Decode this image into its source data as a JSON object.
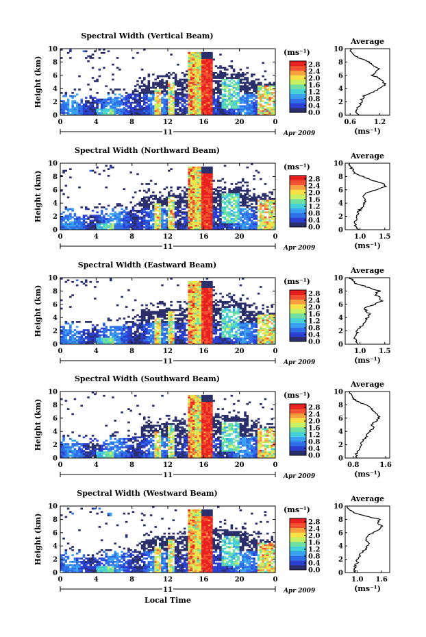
{
  "figure": {
    "height_label": "Height (km)",
    "unit_label": "(ms⁻¹)",
    "avg_title": "Average",
    "avg_xlabel": "(ms⁻¹)",
    "date_label": "Apr 2009",
    "day_label": "11",
    "xlabel": "Local Time",
    "colorbar_ticks": [
      "2.8",
      "2.4",
      "2.0",
      "1.6",
      "1.2",
      "0.8",
      "0.4",
      "0.0"
    ],
    "colors": {
      "scale": [
        "#2a2f6b",
        "#2b3fd0",
        "#2f6fe8",
        "#3aa0f0",
        "#46d0d8",
        "#6fe0a0",
        "#c8f060",
        "#f8e048",
        "#f8a040",
        "#f05030",
        "#e82020"
      ]
    }
  },
  "chart_data": [
    {
      "type": "heatmap",
      "title": "Spectral Width (Vertical Beam)",
      "x_ticks": [
        "0",
        "4",
        "8",
        "12",
        "16",
        "20",
        "0"
      ],
      "y_ticks": [
        "0",
        "2",
        "4",
        "6",
        "8",
        "10"
      ],
      "xlim": [
        0,
        24
      ],
      "ylim": [
        0,
        10
      ],
      "zlim": [
        0,
        3.0
      ],
      "average": {
        "x_ticks": [
          "0.6",
          "1.2"
        ],
        "xlim": [
          0.5,
          1.4
        ],
        "profile": [
          [
            0,
            0.78
          ],
          [
            0.5,
            0.72
          ],
          [
            1,
            0.74
          ],
          [
            1.5,
            0.8
          ],
          [
            2,
            0.82
          ],
          [
            2.5,
            0.84
          ],
          [
            3,
            0.9
          ],
          [
            3.5,
            1.05
          ],
          [
            4,
            1.2
          ],
          [
            4.5,
            1.3
          ],
          [
            5,
            1.28
          ],
          [
            5.5,
            1.2
          ],
          [
            6,
            1.05
          ],
          [
            6.5,
            1.1
          ],
          [
            7,
            1.2
          ],
          [
            7.5,
            1.05
          ],
          [
            8,
            1.0
          ],
          [
            8.5,
            0.8
          ],
          [
            9,
            0.7
          ],
          [
            9.5,
            0.62
          ],
          [
            10,
            0.6
          ]
        ]
      }
    },
    {
      "type": "heatmap",
      "title": "Spectral Width (Northward Beam)",
      "x_ticks": [
        "0",
        "4",
        "8",
        "12",
        "16",
        "20",
        "0"
      ],
      "y_ticks": [
        "0",
        "2",
        "4",
        "6",
        "8",
        "10"
      ],
      "xlim": [
        0,
        24
      ],
      "ylim": [
        0,
        10
      ],
      "zlim": [
        0,
        3.0
      ],
      "average": {
        "x_ticks": [
          "1.0",
          "1.5"
        ],
        "xlim": [
          0.7,
          1.6
        ],
        "profile": [
          [
            0,
            0.95
          ],
          [
            0.5,
            0.92
          ],
          [
            1,
            0.9
          ],
          [
            1.5,
            0.92
          ],
          [
            2,
            0.93
          ],
          [
            2.5,
            0.95
          ],
          [
            3,
            1.0
          ],
          [
            3.5,
            1.05
          ],
          [
            4,
            1.1
          ],
          [
            4.5,
            1.12
          ],
          [
            5,
            1.05
          ],
          [
            5.5,
            1.1
          ],
          [
            6,
            1.35
          ],
          [
            6.5,
            1.5
          ],
          [
            7,
            1.45
          ],
          [
            7.5,
            1.2
          ],
          [
            8,
            1.05
          ],
          [
            8.5,
            0.9
          ],
          [
            9,
            0.85
          ],
          [
            9.5,
            0.8
          ],
          [
            10,
            0.78
          ]
        ]
      }
    },
    {
      "type": "heatmap",
      "title": "Spectral Width (Eastward Beam)",
      "x_ticks": [
        "0",
        "4",
        "8",
        "12",
        "16",
        "20",
        "0"
      ],
      "y_ticks": [
        "0",
        "2",
        "4",
        "6",
        "8",
        "10"
      ],
      "xlim": [
        0,
        24
      ],
      "ylim": [
        0,
        10
      ],
      "zlim": [
        0,
        3.0
      ],
      "average": {
        "x_ticks": [
          "1.0",
          "1.5"
        ],
        "xlim": [
          0.7,
          1.6
        ],
        "profile": [
          [
            0,
            0.95
          ],
          [
            0.5,
            0.92
          ],
          [
            1,
            0.9
          ],
          [
            1.5,
            0.94
          ],
          [
            2,
            0.95
          ],
          [
            2.5,
            1.0
          ],
          [
            3,
            1.05
          ],
          [
            3.5,
            1.1
          ],
          [
            4,
            1.15
          ],
          [
            4.5,
            1.2
          ],
          [
            5,
            1.12
          ],
          [
            5.5,
            1.1
          ],
          [
            6,
            1.3
          ],
          [
            6.5,
            1.45
          ],
          [
            7,
            1.4
          ],
          [
            7.5,
            1.3
          ],
          [
            8,
            1.4
          ],
          [
            8.5,
            1.2
          ],
          [
            9,
            0.95
          ],
          [
            9.5,
            0.85
          ],
          [
            10,
            0.8
          ]
        ]
      }
    },
    {
      "type": "heatmap",
      "title": "Spectral Width (Southward Beam)",
      "x_ticks": [
        "0",
        "4",
        "8",
        "12",
        "16",
        "20",
        "0"
      ],
      "y_ticks": [
        "0",
        "2",
        "4",
        "6",
        "8",
        "10"
      ],
      "xlim": [
        0,
        24
      ],
      "ylim": [
        0,
        10
      ],
      "zlim": [
        0,
        3.0
      ],
      "average": {
        "x_ticks": [
          "0.8",
          "1.6"
        ],
        "xlim": [
          0.6,
          1.7
        ],
        "profile": [
          [
            0,
            0.9
          ],
          [
            0.5,
            0.88
          ],
          [
            1,
            0.9
          ],
          [
            1.5,
            0.95
          ],
          [
            2,
            1.0
          ],
          [
            2.5,
            1.02
          ],
          [
            3,
            1.1
          ],
          [
            3.5,
            1.15
          ],
          [
            4,
            1.2
          ],
          [
            4.5,
            1.3
          ],
          [
            5,
            1.25
          ],
          [
            5.5,
            1.35
          ],
          [
            6,
            1.45
          ],
          [
            6.5,
            1.4
          ],
          [
            7,
            1.3
          ],
          [
            7.5,
            1.25
          ],
          [
            8,
            1.1
          ],
          [
            8.5,
            0.9
          ],
          [
            9,
            0.8
          ],
          [
            9.5,
            0.75
          ],
          [
            10,
            0.72
          ]
        ]
      }
    },
    {
      "type": "heatmap",
      "title": "Spectral Width (Westward Beam)",
      "x_ticks": [
        "0",
        "4",
        "8",
        "12",
        "16",
        "20",
        "0"
      ],
      "y_ticks": [
        "0",
        "2",
        "4",
        "6",
        "8",
        "10"
      ],
      "xlim": [
        0,
        24
      ],
      "ylim": [
        0,
        10
      ],
      "zlim": [
        0,
        3.0
      ],
      "average": {
        "x_ticks": [
          "1.0",
          "1.6"
        ],
        "xlim": [
          0.7,
          1.8
        ],
        "profile": [
          [
            0,
            0.95
          ],
          [
            0.5,
            0.92
          ],
          [
            1,
            0.95
          ],
          [
            1.5,
            1.0
          ],
          [
            2,
            1.0
          ],
          [
            2.5,
            1.05
          ],
          [
            3,
            1.1
          ],
          [
            3.5,
            1.2
          ],
          [
            4,
            1.25
          ],
          [
            4.5,
            1.3
          ],
          [
            5,
            1.2
          ],
          [
            5.5,
            1.25
          ],
          [
            6,
            1.4
          ],
          [
            6.5,
            1.55
          ],
          [
            7,
            1.6
          ],
          [
            7.5,
            1.5
          ],
          [
            8,
            1.55
          ],
          [
            8.5,
            1.2
          ],
          [
            9,
            0.9
          ],
          [
            9.5,
            0.8
          ],
          [
            10,
            0.75
          ]
        ]
      }
    }
  ]
}
